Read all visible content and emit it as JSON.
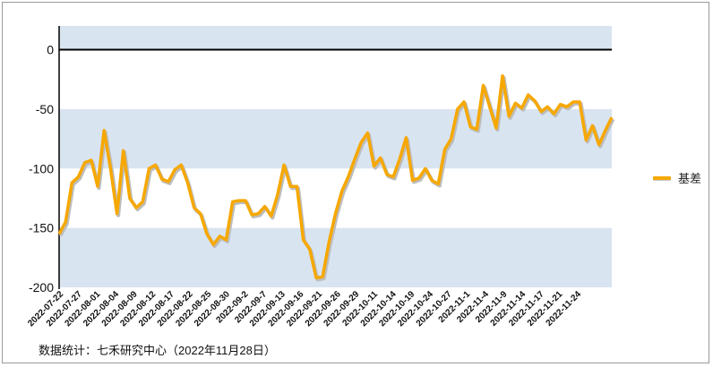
{
  "chart_data": {
    "type": "line",
    "series": [
      {
        "name": "基差",
        "color": "#F6A800",
        "values": [
          -155,
          -145,
          -112,
          -107,
          -95,
          -93,
          -115,
          -68,
          -100,
          -138,
          -85,
          -125,
          -133,
          -128,
          -100,
          -97,
          -109,
          -111,
          -101,
          -97,
          -112,
          -133,
          -138,
          -155,
          -164,
          -157,
          -160,
          -128,
          -127,
          -127,
          -139,
          -138,
          -132,
          -140,
          -122,
          -97,
          -115,
          -115,
          -160,
          -168,
          -192,
          -191,
          -162,
          -138,
          -119,
          -107,
          -92,
          -78,
          -70,
          -98,
          -91,
          -105,
          -107,
          -92,
          -74,
          -110,
          -108,
          -100,
          -110,
          -113,
          -84,
          -75,
          -50,
          -44,
          -65,
          -67,
          -30,
          -48,
          -66,
          -22,
          -56,
          -45,
          -49,
          -38,
          -43,
          -52,
          -48,
          -54,
          -46,
          -48,
          -44,
          -44,
          -76,
          -64,
          -80,
          -68,
          -57
        ]
      }
    ],
    "x_tick_labels": [
      "2022-07-22",
      "2022-07-27",
      "2022-08-01",
      "2022-08-04",
      "2022-08-09",
      "2022-08-12",
      "2022-08-17",
      "2022-08-22",
      "2022-08-25",
      "2022-08-30",
      "2022-09-2",
      "2022-09-7",
      "2022-09-13",
      "2022-09-16",
      "2022-09-21",
      "2022-09-26",
      "2022-09-29",
      "2022-10-11",
      "2022-10-14",
      "2022-10-19",
      "2022-10-24",
      "2022-10-27",
      "2022-11-1",
      "2022-11-4",
      "2022-11-9",
      "2022-11-14",
      "2022-11-17",
      "2022-11-21",
      "2022-11-24"
    ],
    "y_ticks": [
      "0",
      "-50",
      "-100",
      "-150",
      "-200"
    ],
    "ylim": [
      -200,
      20
    ],
    "grid": "alternating horizontal bands",
    "legend_position": "right",
    "band_color": "#D9E4F1",
    "zero_line_color": "#000000"
  },
  "source_note": "数据统计：七禾研究中心（2022年11月28日）"
}
